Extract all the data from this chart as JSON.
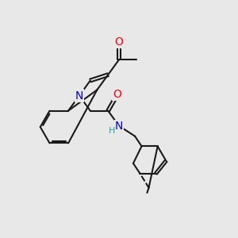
{
  "bg_color": "#e8e8e8",
  "bond_color": "#1a1a1a",
  "bond_width": 1.5,
  "atom_colors": {
    "O": "#ff0000",
    "N": "#0000cc",
    "H": "#2aa0a0",
    "C": "#1a1a1a"
  },
  "font_size_atom": 10,
  "font_size_H": 8
}
